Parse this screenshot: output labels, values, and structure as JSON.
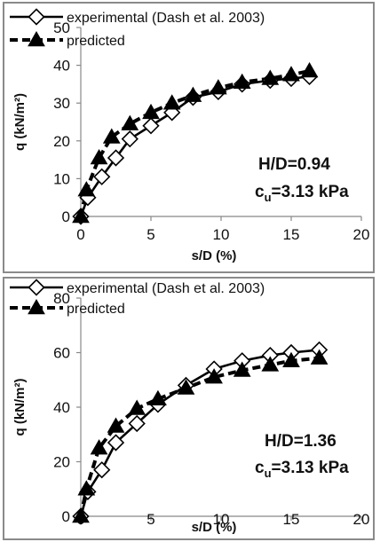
{
  "chart_data": [
    {
      "type": "line",
      "xlabel": "s/D (%)",
      "ylabel": "q (kN/m²)",
      "xlim": [
        0,
        20
      ],
      "ylim": [
        0,
        50
      ],
      "xticks": [
        "0",
        "5",
        "10",
        "15",
        "20"
      ],
      "yticks": [
        "0",
        "10",
        "20",
        "30",
        "40",
        "50"
      ],
      "grid": false,
      "legend_position": "top-left",
      "annotations": {
        "line1": "H/D=0.94",
        "line2_main": "c",
        "line2_sub": "u",
        "line2_rest": "=3.13 kPa"
      },
      "series": [
        {
          "name": "experimental (Dash et al. 2003)",
          "marker": "diamond-open",
          "line": "solid",
          "x": [
            0,
            0.5,
            1.5,
            2.5,
            3.5,
            5,
            6.5,
            8,
            9.8,
            11.5,
            13.5,
            15,
            16.3
          ],
          "y": [
            0,
            5,
            10.5,
            15.5,
            20.5,
            24,
            27.5,
            31.5,
            33,
            35,
            36,
            36.5,
            37
          ]
        },
        {
          "name": "predicted",
          "marker": "triangle-filled",
          "line": "dashed",
          "x": [
            0,
            0.4,
            1.3,
            2.2,
            3.5,
            5,
            6.5,
            8,
            9.8,
            11.5,
            13.5,
            15,
            16.3
          ],
          "y": [
            0,
            7,
            15.5,
            21,
            24.5,
            27.5,
            30,
            32,
            34,
            35.5,
            36.5,
            37.5,
            38.5
          ]
        }
      ]
    },
    {
      "type": "line",
      "xlabel": "s/D (%)",
      "ylabel": "q (kN/m²)",
      "xlim": [
        0,
        20
      ],
      "ylim": [
        0,
        80
      ],
      "xticks": [
        "0",
        "5",
        "10",
        "15",
        "20"
      ],
      "yticks": [
        "0",
        "20",
        "40",
        "60",
        "80"
      ],
      "grid": false,
      "legend_position": "top-left",
      "annotations": {
        "line1": "H/D=1.36",
        "line2_main": "c",
        "line2_sub": "u",
        "line2_rest": "=3.13 kPa"
      },
      "series": [
        {
          "name": "experimental (Dash et al. 2003)",
          "marker": "diamond-open",
          "line": "solid",
          "x": [
            0,
            0.5,
            1.5,
            2.5,
            4,
            5.5,
            7.5,
            9.5,
            11.5,
            13.5,
            15,
            17
          ],
          "y": [
            0,
            9,
            17,
            27,
            34,
            41,
            48,
            54,
            57,
            59,
            60,
            61
          ]
        },
        {
          "name": "predicted",
          "marker": "triangle-filled",
          "line": "dashed",
          "x": [
            0,
            0.4,
            1.3,
            2.5,
            4,
            5.5,
            7.5,
            9.5,
            11.5,
            13.5,
            15,
            17
          ],
          "y": [
            0,
            10,
            25,
            33,
            39.5,
            43,
            47,
            51,
            53.5,
            55.5,
            57,
            58
          ]
        }
      ]
    }
  ]
}
